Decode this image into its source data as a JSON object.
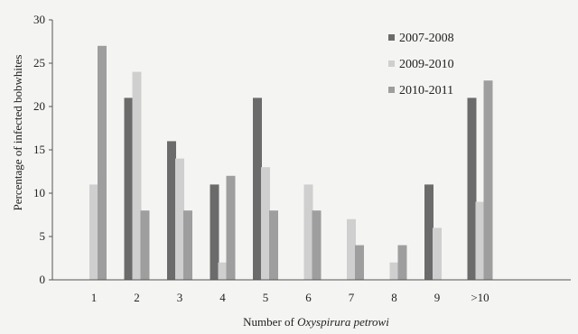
{
  "chart_data": {
    "type": "bar",
    "title": "",
    "xlabel_prefix": "Number of ",
    "xlabel_italic": "Oxyspirura petrowi",
    "ylabel": "Percentage of infected bobwhites",
    "categories": [
      "1",
      "2",
      "3",
      "4",
      "5",
      "6",
      "7",
      "8",
      "9",
      ">10"
    ],
    "ylim": [
      0,
      30
    ],
    "yticks": [
      0,
      5,
      10,
      15,
      20,
      25,
      30
    ],
    "grid": false,
    "legend_position": "top-right",
    "series": [
      {
        "name": "2007-2008",
        "color": "#6b6b6b",
        "values": [
          0,
          21,
          16,
          11,
          21,
          0,
          0,
          0,
          11,
          21
        ]
      },
      {
        "name": "2009-2010",
        "color": "#cfcfcf",
        "values": [
          11,
          24,
          14,
          2,
          13,
          11,
          7,
          2,
          6,
          9
        ]
      },
      {
        "name": "2010-2011",
        "color": "#9e9e9e",
        "values": [
          27,
          8,
          8,
          12,
          8,
          8,
          4,
          4,
          0,
          23
        ]
      }
    ]
  }
}
